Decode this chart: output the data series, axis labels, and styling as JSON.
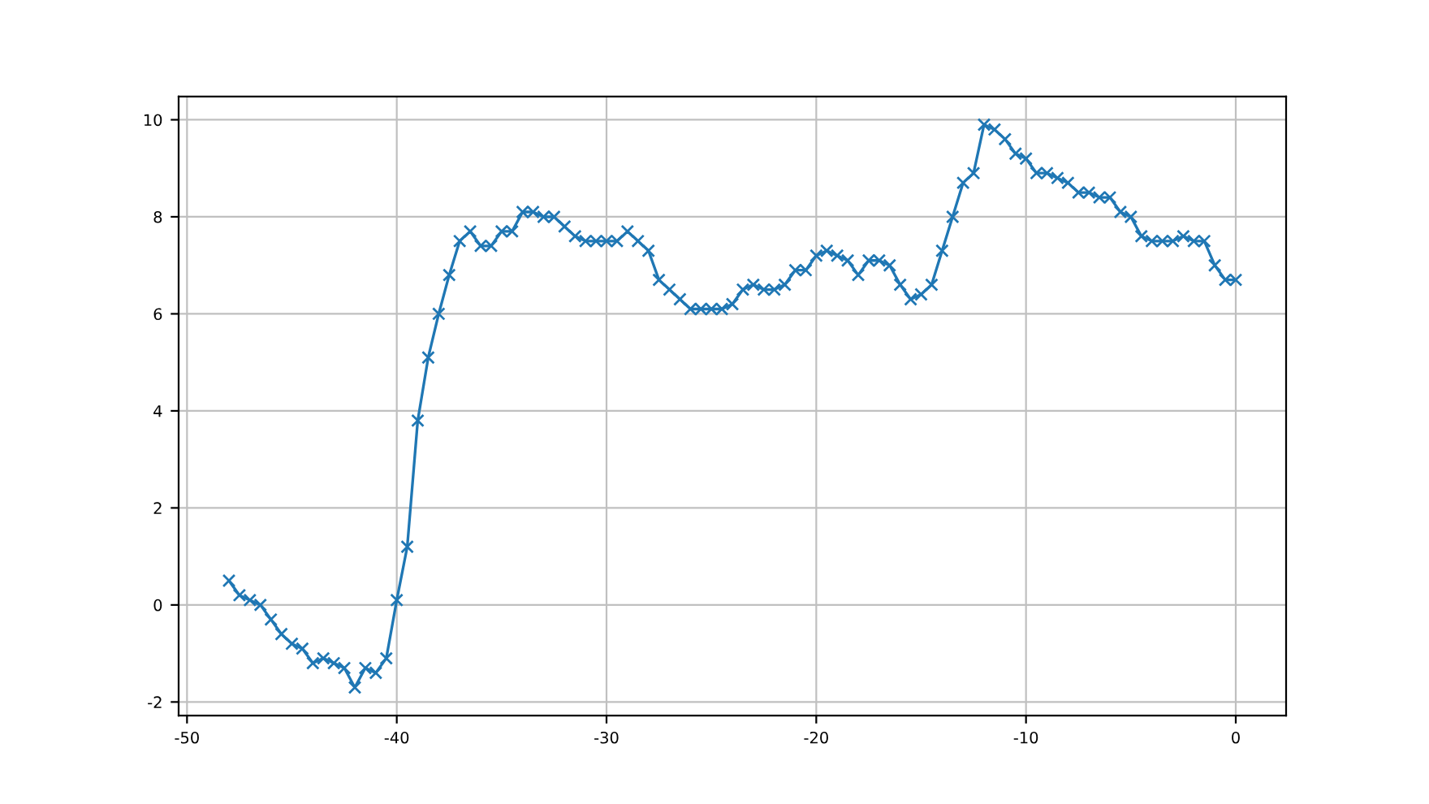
{
  "chart_data": {
    "type": "line",
    "marker": "cross",
    "grid": true,
    "line_style": "solid",
    "xlim": [
      -50.4,
      2.4
    ],
    "xticks": [
      -50,
      -40,
      -30,
      -20,
      -10,
      0
    ],
    "ylim": [
      -2.28,
      10.48
    ],
    "yticks": [
      -2,
      0,
      2,
      4,
      6,
      8,
      10
    ],
    "x": [
      -48,
      -47.5,
      -47,
      -46.5,
      -46,
      -45.5,
      -45,
      -44.5,
      -44,
      -43.5,
      -43,
      -42.5,
      -42,
      -41.5,
      -41,
      -40.5,
      -40,
      -39.5,
      -39,
      -38.5,
      -38,
      -37.5,
      -37,
      -36.5,
      -36,
      -35.5,
      -35,
      -34.5,
      -34,
      -33.5,
      -33,
      -32.5,
      -32,
      -31.5,
      -31,
      -30.5,
      -30,
      -29.5,
      -29,
      -28.5,
      -28,
      -27.5,
      -27,
      -26.5,
      -26,
      -25.5,
      -25,
      -24.5,
      -24,
      -23.5,
      -23,
      -22.5,
      -22,
      -21.5,
      -21,
      -20.5,
      -20,
      -19.5,
      -19,
      -18.5,
      -18,
      -17.5,
      -17,
      -16.5,
      -16,
      -15.5,
      -15,
      -14.5,
      -14,
      -13.5,
      -13,
      -12.5,
      -12,
      -11.5,
      -11,
      -10.5,
      -10,
      -9.5,
      -9,
      -8.5,
      -8,
      -7.5,
      -7,
      -6.5,
      -6,
      -5.5,
      -5,
      -4.5,
      -4,
      -3.5,
      -3,
      -2.5,
      -2,
      -1.5,
      -1,
      -0.5,
      0
    ],
    "series": [
      {
        "color": "#1f77b4",
        "values": [
          0.5,
          0.2,
          0.1,
          0.0,
          -0.3,
          -0.6,
          -0.8,
          -0.9,
          -1.2,
          -1.1,
          -1.2,
          -1.3,
          -1.7,
          -1.3,
          -1.4,
          -1.1,
          0.1,
          1.2,
          3.8,
          5.1,
          6.0,
          6.8,
          7.5,
          7.7,
          7.4,
          7.4,
          7.7,
          7.7,
          8.1,
          8.1,
          8.0,
          8.0,
          7.8,
          7.6,
          7.5,
          7.5,
          7.5,
          7.5,
          7.7,
          7.5,
          7.3,
          6.7,
          6.5,
          6.3,
          6.1,
          6.1,
          6.1,
          6.1,
          6.2,
          6.5,
          6.6,
          6.5,
          6.5,
          6.6,
          6.9,
          6.9,
          7.2,
          7.3,
          7.2,
          7.1,
          6.8,
          7.1,
          7.1,
          7.0,
          6.6,
          6.3,
          6.4,
          6.6,
          7.3,
          8.0,
          8.7,
          8.9,
          9.9,
          9.8,
          9.6,
          9.3,
          9.2,
          8.9,
          8.9,
          8.8,
          8.7,
          8.5,
          8.5,
          8.4,
          8.4,
          8.1,
          8.0,
          7.6,
          7.5,
          7.5,
          7.5,
          7.6,
          7.5,
          7.5,
          7.0,
          6.7,
          6.7
        ]
      }
    ]
  }
}
